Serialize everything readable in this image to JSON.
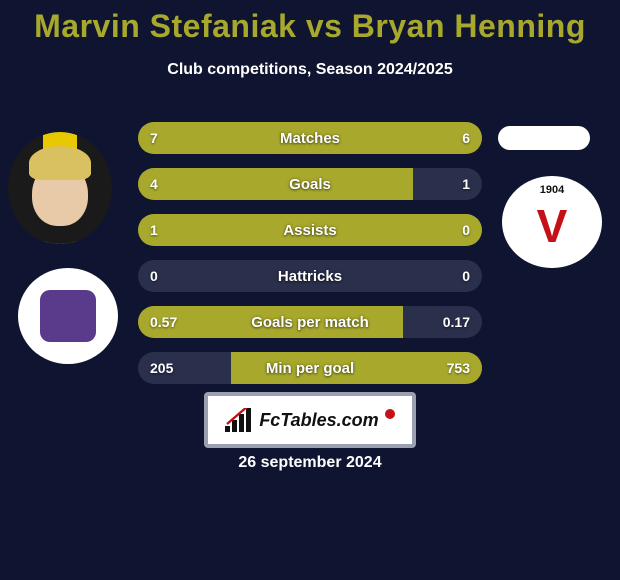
{
  "background_color": "#0f1530",
  "title": {
    "text": "Marvin Stefaniak vs Bryan Henning",
    "color": "#a7a82c",
    "fontsize": 32
  },
  "subtitle": {
    "text": "Club competitions, Season 2024/2025",
    "color": "#ffffff",
    "fontsize": 16
  },
  "player_left": {
    "bg_colors": [
      "#1a1a1a",
      "#e8c800",
      "#1a1a1a"
    ],
    "skin": "#e8c9a8",
    "hair": "#d9c060",
    "shirt": "#1a1a1a"
  },
  "player_right": {
    "placeholder_color": "#ffffff"
  },
  "club_left": {
    "outer_color": "#ffffff",
    "inner_color": "#5a3a8a"
  },
  "club_right": {
    "outer_color": "#ffffff",
    "v_color": "#c41017",
    "year_text": "1904",
    "year_bg": "#ffffff",
    "year_color": "#111111"
  },
  "stats": {
    "bar_bg": "#2a2f4b",
    "fill_color": "#a7a82c",
    "text_color": "#ffffff",
    "rows": [
      {
        "label": "Matches",
        "left": "7",
        "right": "6",
        "left_pct": 50,
        "right_pct": 50
      },
      {
        "label": "Goals",
        "left": "4",
        "right": "1",
        "left_pct": 80,
        "right_pct": 0
      },
      {
        "label": "Assists",
        "left": "1",
        "right": "0",
        "left_pct": 100,
        "right_pct": 0
      },
      {
        "label": "Hattricks",
        "left": "0",
        "right": "0",
        "left_pct": 0,
        "right_pct": 0
      },
      {
        "label": "Goals per match",
        "left": "0.57",
        "right": "0.17",
        "left_pct": 77,
        "right_pct": 0
      },
      {
        "label": "Min per goal",
        "left": "205",
        "right": "753",
        "left_pct": 0,
        "right_pct": 73
      }
    ]
  },
  "footer": {
    "badge_bg": "#ffffff",
    "badge_border": "#9aa0b0",
    "text": "FcTables.com",
    "text_color": "#111111",
    "dot_color": "#c41017"
  },
  "date": {
    "text": "26 september 2024",
    "color": "#ffffff"
  }
}
